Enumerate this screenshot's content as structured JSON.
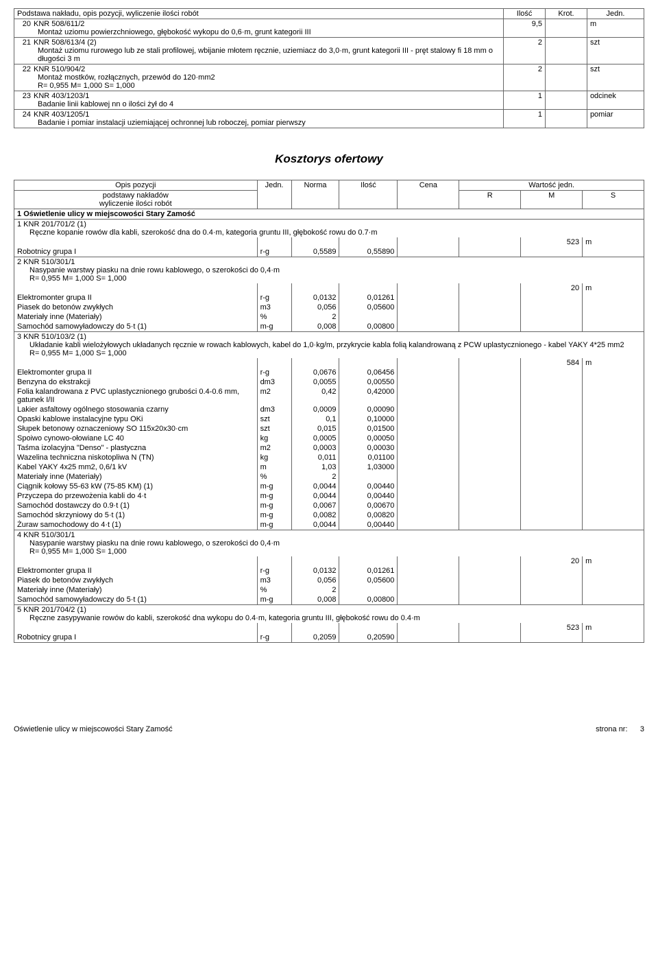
{
  "table1": {
    "headers": {
      "desc": "Podstawa nakładu, opis pozycji, wyliczenie ilości robót",
      "qty": "Ilość",
      "mult": "Krot.",
      "unit": "Jedn."
    },
    "rows": [
      {
        "num": "20",
        "code": "KNR 508/611/2",
        "lines": [
          "Montaż uziomu powierzchniowego, głębokość wykopu do 0,6·m, grunt kategorii III"
        ],
        "qty": "9,5",
        "unit": "m"
      },
      {
        "num": "21",
        "code": "KNR 508/613/4 (2)",
        "lines": [
          "Montaż uziomu rurowego lub ze stali profilowej, wbijanie młotem ręcznie, uziemiacz do 3,0·m, grunt kategorii III - pręt stalowy fi 18 mm o długości 3 m"
        ],
        "qty": "2",
        "unit": "szt"
      },
      {
        "num": "22",
        "code": "KNR 510/904/2",
        "lines": [
          "Montaż mostków, rozłącznych, przewód do 120·mm2",
          "R= 0,955   M= 1,000   S= 1,000"
        ],
        "qty": "2",
        "unit": "szt"
      },
      {
        "num": "23",
        "code": "KNR 403/1203/1",
        "lines": [
          "Badanie linii kablowej nn o ilości żył do 4"
        ],
        "qty": "1",
        "unit": "odcinek"
      },
      {
        "num": "24",
        "code": "KNR 403/1205/1",
        "lines": [
          "Badanie i pomiar instalacji uziemiającej ochronnej lub roboczej, pomiar pierwszy"
        ],
        "qty": "1",
        "unit": "pomiar"
      }
    ]
  },
  "title2": "Kosztorys ofertowy",
  "table2": {
    "headers": {
      "opis1": "Opis pozycji",
      "opis2": "podstawy nakładów",
      "opis3": "wyliczenie ilości robót",
      "jedn": "Jedn.",
      "norma": "Norma",
      "ilosc": "Ilość",
      "cena": "Cena",
      "wart": "Wartość jedn.",
      "r": "R",
      "m": "M",
      "s": "S"
    },
    "section": {
      "num": "1",
      "title": "Oświetlenie ulicy w miejscowości Stary Zamość"
    },
    "groups": [
      {
        "num": "1",
        "code": "KNR 201/701/2 (1)",
        "desc": "Ręczne kopanie rowów dla kabli, szerokość dna do 0.4·m, kategoria gruntu III, głębokość rowu do 0.7·m",
        "total_qty": "523",
        "total_unit": "m",
        "items": [
          {
            "name": "Robotnicy grupa I",
            "jedn": "r-g",
            "norma": "0,5589",
            "ilosc": "0,55890"
          }
        ]
      },
      {
        "num": "2",
        "code": "KNR 510/301/1",
        "desc": "Nasypanie warstwy piasku na dnie rowu kablowego, o szerokości do 0,4·m",
        "extra": "R= 0,955   M= 1,000   S= 1,000",
        "total_qty": "20",
        "total_unit": "m",
        "items": [
          {
            "name": "Elektromonter grupa II",
            "jedn": "r-g",
            "norma": "0,0132",
            "ilosc": "0,01261"
          },
          {
            "name": "Piasek do betonów zwykłych",
            "jedn": "m3",
            "norma": "0,056",
            "ilosc": "0,05600"
          },
          {
            "name": "Materiały inne (Materiały)",
            "jedn": "%",
            "norma": "2",
            "ilosc": ""
          },
          {
            "name": "Samochód samowyładowczy do 5·t (1)",
            "jedn": "m-g",
            "norma": "0,008",
            "ilosc": "0,00800"
          }
        ]
      },
      {
        "num": "3",
        "code": "KNR 510/103/2 (1)",
        "desc": "Układanie kabli wielożyłowych układanych ręcznie w rowach kablowych, kabel do 1,0·kg/m, przykrycie kabla folią kalandrowaną z PCW uplastycznionego - kabel YAKY 4*25 mm2",
        "extra": "R= 0,955   M= 1,000   S= 1,000",
        "total_qty": "584",
        "total_unit": "m",
        "items": [
          {
            "name": "Elektromonter grupa II",
            "jedn": "r-g",
            "norma": "0,0676",
            "ilosc": "0,06456"
          },
          {
            "name": "Benzyna do ekstrakcji",
            "jedn": "dm3",
            "norma": "0,0055",
            "ilosc": "0,00550"
          },
          {
            "name": "Folia kalandrowana z PVC uplastycznionego grubości 0.4-0.6 mm, gatunek I/II",
            "jedn": "m2",
            "norma": "0,42",
            "ilosc": "0,42000"
          },
          {
            "name": "Lakier asfaltowy ogólnego stosowania czarny",
            "jedn": "dm3",
            "norma": "0,0009",
            "ilosc": "0,00090"
          },
          {
            "name": "Opaski kablowe instalacyjne typu OKi",
            "jedn": "szt",
            "norma": "0,1",
            "ilosc": "0,10000"
          },
          {
            "name": "Słupek betonowy oznaczeniowy SO 115x20x30·cm",
            "jedn": "szt",
            "norma": "0,015",
            "ilosc": "0,01500"
          },
          {
            "name": "Spoiwo cynowo-ołowiane LC 40",
            "jedn": "kg",
            "norma": "0,0005",
            "ilosc": "0,00050"
          },
          {
            "name": "Taśma izolacyjna \"Denso\" - plastyczna",
            "jedn": "m2",
            "norma": "0,0003",
            "ilosc": "0,00030"
          },
          {
            "name": "Wazelina techniczna niskotopliwa N (TN)",
            "jedn": "kg",
            "norma": "0,011",
            "ilosc": "0,01100"
          },
          {
            "name": "Kabel YAKY 4x25 mm2, 0,6/1 kV",
            "jedn": "m",
            "norma": "1,03",
            "ilosc": "1,03000"
          },
          {
            "name": "Materiały inne (Materiały)",
            "jedn": "%",
            "norma": "2",
            "ilosc": ""
          },
          {
            "name": "Ciągnik kołowy 55-63 kW (75-85 KM) (1)",
            "jedn": "m-g",
            "norma": "0,0044",
            "ilosc": "0,00440"
          },
          {
            "name": "Przyczepa do przewożenia kabli do 4·t",
            "jedn": "m-g",
            "norma": "0,0044",
            "ilosc": "0,00440"
          },
          {
            "name": "Samochód dostawczy do 0.9·t (1)",
            "jedn": "m-g",
            "norma": "0,0067",
            "ilosc": "0,00670"
          },
          {
            "name": "Samochód skrzyniowy do 5·t (1)",
            "jedn": "m-g",
            "norma": "0,0082",
            "ilosc": "0,00820"
          },
          {
            "name": "Żuraw samochodowy do 4·t (1)",
            "jedn": "m-g",
            "norma": "0,0044",
            "ilosc": "0,00440"
          }
        ]
      },
      {
        "num": "4",
        "code": "KNR 510/301/1",
        "desc": "Nasypanie warstwy piasku na dnie rowu kablowego, o szerokości do 0,4·m",
        "extra": "R= 0,955   M= 1,000   S= 1,000",
        "total_qty": "20",
        "total_unit": "m",
        "items": [
          {
            "name": "Elektromonter grupa II",
            "jedn": "r-g",
            "norma": "0,0132",
            "ilosc": "0,01261"
          },
          {
            "name": "Piasek do betonów zwykłych",
            "jedn": "m3",
            "norma": "0,056",
            "ilosc": "0,05600"
          },
          {
            "name": "Materiały inne (Materiały)",
            "jedn": "%",
            "norma": "2",
            "ilosc": ""
          },
          {
            "name": "Samochód samowyładowczy do 5·t (1)",
            "jedn": "m-g",
            "norma": "0,008",
            "ilosc": "0,00800"
          }
        ]
      },
      {
        "num": "5",
        "code": "KNR 201/704/2 (1)",
        "desc": "Ręczne zasypywanie rowów do kabli, szerokość dna wykopu do 0.4·m, kategoria gruntu III, głębokość rowu do 0.4·m",
        "total_qty": "523",
        "total_unit": "m",
        "items": [
          {
            "name": "Robotnicy grupa I",
            "jedn": "r-g",
            "norma": "0,2059",
            "ilosc": "0,20590"
          }
        ]
      }
    ]
  },
  "footer": {
    "left": "Oświetlenie ulicy w miejscowości  Stary Zamość",
    "right_label": "strona nr:",
    "right_val": "3"
  }
}
